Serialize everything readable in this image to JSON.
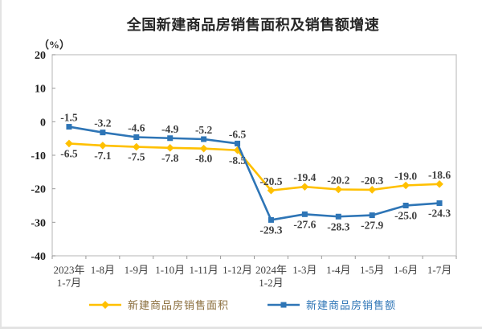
{
  "page": {
    "background": "#ffffff",
    "edge_border_color": "#e3e3e3"
  },
  "chart_data": {
    "type": "line",
    "title": "全国新建商品房销售面积及销售额增速",
    "unit_label": "（%）",
    "categories": [
      [
        "2023年",
        "1-7月"
      ],
      [
        "1-8月"
      ],
      [
        "1-9月"
      ],
      [
        "1-10月"
      ],
      [
        "1-11月"
      ],
      [
        "1-12月"
      ],
      [
        "2024年",
        "1-2月"
      ],
      [
        "1-3月"
      ],
      [
        "1-4月"
      ],
      [
        "1-5月"
      ],
      [
        "1-6月"
      ],
      [
        "1-7月"
      ]
    ],
    "ylim": [
      -40,
      20
    ],
    "yticks": [
      "20",
      "10",
      "0",
      "-10",
      "-20",
      "-30",
      "-40"
    ],
    "grid": false,
    "legend_position": "bottom",
    "series": [
      {
        "name": "新建商品房销售面积",
        "color": "#FFC000",
        "marker": "diamond",
        "legend_text_color": "#8a6d3b",
        "values": [
          -6.5,
          -7.1,
          -7.5,
          -7.8,
          -8.0,
          -8.5,
          -20.5,
          -19.4,
          -20.2,
          -20.3,
          -19.0,
          -18.6
        ],
        "labels": [
          "-6.5",
          "-7.1",
          "-7.5",
          "-7.8",
          "-8.0",
          "-8.5",
          "-20.5",
          "-19.4",
          "-20.2",
          "-20.3",
          "-19.0",
          "-18.6"
        ],
        "label_side": [
          "below",
          "below",
          "below",
          "below",
          "below",
          "below",
          "above",
          "above",
          "above",
          "above",
          "above",
          "above"
        ]
      },
      {
        "name": "新建商品房销售额",
        "color": "#2E75B6",
        "marker": "square",
        "legend_text_color": "#2E75B6",
        "values": [
          -1.5,
          -3.2,
          -4.6,
          -4.9,
          -5.2,
          -6.5,
          -29.3,
          -27.6,
          -28.3,
          -27.9,
          -25.0,
          -24.3
        ],
        "labels": [
          "-1.5",
          "-3.2",
          "-4.6",
          "-4.9",
          "-5.2",
          "-6.5",
          "-29.3",
          "-27.6",
          "-28.3",
          "-27.9",
          "-25.0",
          "-24.3"
        ],
        "label_side": [
          "above",
          "above",
          "above",
          "above",
          "above",
          "above",
          "below",
          "below",
          "below",
          "below",
          "below",
          "below"
        ]
      }
    ],
    "colors": {
      "value_label": "#404040",
      "ytick_label": "#1a1a1a",
      "xtick_label": "#404040",
      "plot_border": "#c6c6c6",
      "tick_mark": "#999999"
    }
  }
}
